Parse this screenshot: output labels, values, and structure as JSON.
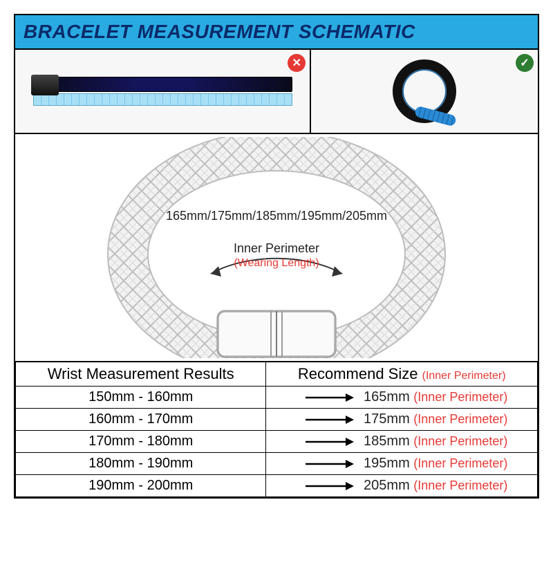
{
  "title": "BRACELET MEASUREMENT SCHEMATIC",
  "colors": {
    "header_bg": "#29abe2",
    "header_text": "#0b2a6b",
    "border": "#000000",
    "wrong_badge": "#e53935",
    "right_badge": "#2e7d32",
    "accent_red": "#e53935",
    "text": "#222222"
  },
  "methods": {
    "wrong_symbol": "✕",
    "right_symbol": "✓"
  },
  "diagram": {
    "sizes_line": "165mm/175mm/185mm/195mm/205mm",
    "inner_perimeter_label": "Inner Perimeter",
    "wearing_length_label": "(Wearing Length)"
  },
  "table": {
    "headers": {
      "left": "Wrist Measurement Results",
      "right": "Recommend Size",
      "right_note": "(Inner Perimeter)"
    },
    "rows": [
      {
        "range": "150mm - 160mm",
        "size": "165mm",
        "note": "(Inner Perimeter)"
      },
      {
        "range": "160mm - 170mm",
        "size": "175mm",
        "note": "(Inner Perimeter)"
      },
      {
        "range": "170mm - 180mm",
        "size": "185mm",
        "note": "(Inner Perimeter)"
      },
      {
        "range": "180mm - 190mm",
        "size": "195mm",
        "note": "(Inner Perimeter)"
      },
      {
        "range": "190mm - 200mm",
        "size": "205mm",
        "note": "(Inner Perimeter)"
      }
    ]
  }
}
